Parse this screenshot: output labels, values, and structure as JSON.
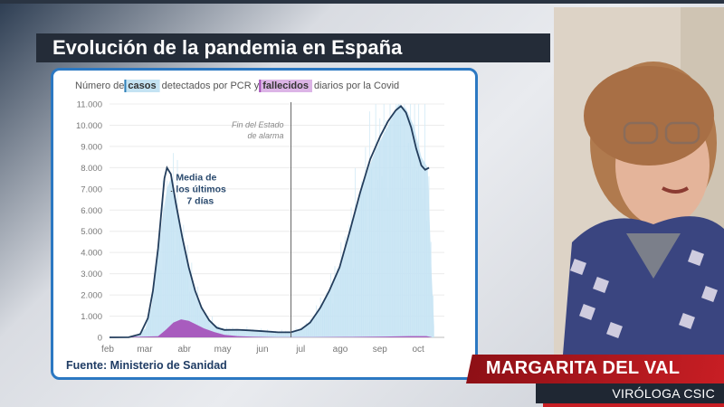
{
  "broadcast": {
    "title": "Evolución de la pandemia en España",
    "name": "MARGARITA DEL VAL",
    "role": "VIRÓLOGA CSIC"
  },
  "colors": {
    "cases": "#c4e3f3",
    "deaths": "#a44cb8",
    "line": "#233d5c",
    "frame": "#2b78c2",
    "caption_red": "#c81e24",
    "dark_bar": "#242c38"
  },
  "chart_data": {
    "type": "area",
    "title_parts": [
      "Número de ",
      "casos",
      " detectados por PCR y ",
      "fallecidos",
      " diarios por la Covid"
    ],
    "source": "Fuente: Ministerio de Sanidad",
    "y_ticks": [
      "0",
      "1.000",
      "2.000",
      "3.000",
      "4.000",
      "5.000",
      "6.000",
      "7.000",
      "8.000",
      "9.000",
      "10.000",
      "11.000"
    ],
    "ylim": [
      0,
      11000
    ],
    "x_ticks": [
      {
        "label": "feb",
        "day": 0
      },
      {
        "label": "mar",
        "day": 29
      },
      {
        "label": "abr",
        "day": 60
      },
      {
        "label": "may",
        "day": 90
      },
      {
        "label": "jun",
        "day": 121
      },
      {
        "label": "jul",
        "day": 151
      },
      {
        "label": "ago",
        "day": 182
      },
      {
        "label": "sep",
        "day": 213
      },
      {
        "label": "oct",
        "day": 243
      }
    ],
    "xlim_days": [
      0,
      262
    ],
    "vline": {
      "day": 142,
      "label_lines": [
        "Fin del Estado",
        "de alarma"
      ]
    },
    "annotation": {
      "lines": [
        "Media de",
        "los últimos",
        "7 días"
      ]
    },
    "series": [
      {
        "name": "casos",
        "points": [
          [
            0,
            0
          ],
          [
            20,
            50
          ],
          [
            28,
            400
          ],
          [
            33,
            1500
          ],
          [
            37,
            3500
          ],
          [
            41,
            5500
          ],
          [
            45,
            7000
          ],
          [
            48,
            7500
          ],
          [
            52,
            6500
          ],
          [
            58,
            4500
          ],
          [
            63,
            3000
          ],
          [
            68,
            1900
          ],
          [
            73,
            1200
          ],
          [
            80,
            700
          ],
          [
            86,
            450
          ],
          [
            92,
            350
          ],
          [
            100,
            350
          ],
          [
            110,
            350
          ],
          [
            120,
            300
          ],
          [
            132,
            250
          ],
          [
            142,
            280
          ],
          [
            150,
            400
          ],
          [
            158,
            800
          ],
          [
            168,
            1800
          ],
          [
            178,
            3000
          ],
          [
            188,
            5000
          ],
          [
            198,
            7200
          ],
          [
            208,
            8800
          ],
          [
            218,
            10000
          ],
          [
            226,
            11000
          ],
          [
            232,
            10800
          ],
          [
            238,
            10000
          ],
          [
            244,
            8500
          ],
          [
            249,
            8000
          ],
          [
            252,
            3000
          ],
          [
            254,
            500
          ]
        ]
      },
      {
        "name": "fallecidos",
        "points": [
          [
            0,
            0
          ],
          [
            38,
            50
          ],
          [
            44,
            350
          ],
          [
            50,
            700
          ],
          [
            56,
            850
          ],
          [
            62,
            780
          ],
          [
            68,
            600
          ],
          [
            74,
            420
          ],
          [
            82,
            250
          ],
          [
            90,
            120
          ],
          [
            100,
            60
          ],
          [
            112,
            30
          ],
          [
            130,
            10
          ],
          [
            160,
            10
          ],
          [
            190,
            20
          ],
          [
            215,
            40
          ],
          [
            235,
            60
          ],
          [
            248,
            60
          ],
          [
            252,
            10
          ]
        ]
      },
      {
        "name": "Media de los últimos 7 días",
        "points": [
          [
            0,
            0
          ],
          [
            15,
            5
          ],
          [
            24,
            150
          ],
          [
            30,
            900
          ],
          [
            34,
            2200
          ],
          [
            38,
            4200
          ],
          [
            41,
            6200
          ],
          [
            43,
            7500
          ],
          [
            45,
            8000
          ],
          [
            48,
            7700
          ],
          [
            52,
            6300
          ],
          [
            57,
            4700
          ],
          [
            62,
            3300
          ],
          [
            67,
            2200
          ],
          [
            72,
            1400
          ],
          [
            78,
            800
          ],
          [
            84,
            450
          ],
          [
            90,
            350
          ],
          [
            100,
            360
          ],
          [
            110,
            330
          ],
          [
            120,
            290
          ],
          [
            132,
            240
          ],
          [
            142,
            240
          ],
          [
            150,
            380
          ],
          [
            157,
            700
          ],
          [
            165,
            1400
          ],
          [
            172,
            2200
          ],
          [
            180,
            3300
          ],
          [
            188,
            5000
          ],
          [
            196,
            6800
          ],
          [
            204,
            8400
          ],
          [
            212,
            9500
          ],
          [
            218,
            10200
          ],
          [
            224,
            10700
          ],
          [
            228,
            10900
          ],
          [
            232,
            10600
          ],
          [
            236,
            9900
          ],
          [
            240,
            8900
          ],
          [
            244,
            8100
          ],
          [
            247,
            7900
          ],
          [
            250,
            8000
          ]
        ]
      }
    ]
  }
}
